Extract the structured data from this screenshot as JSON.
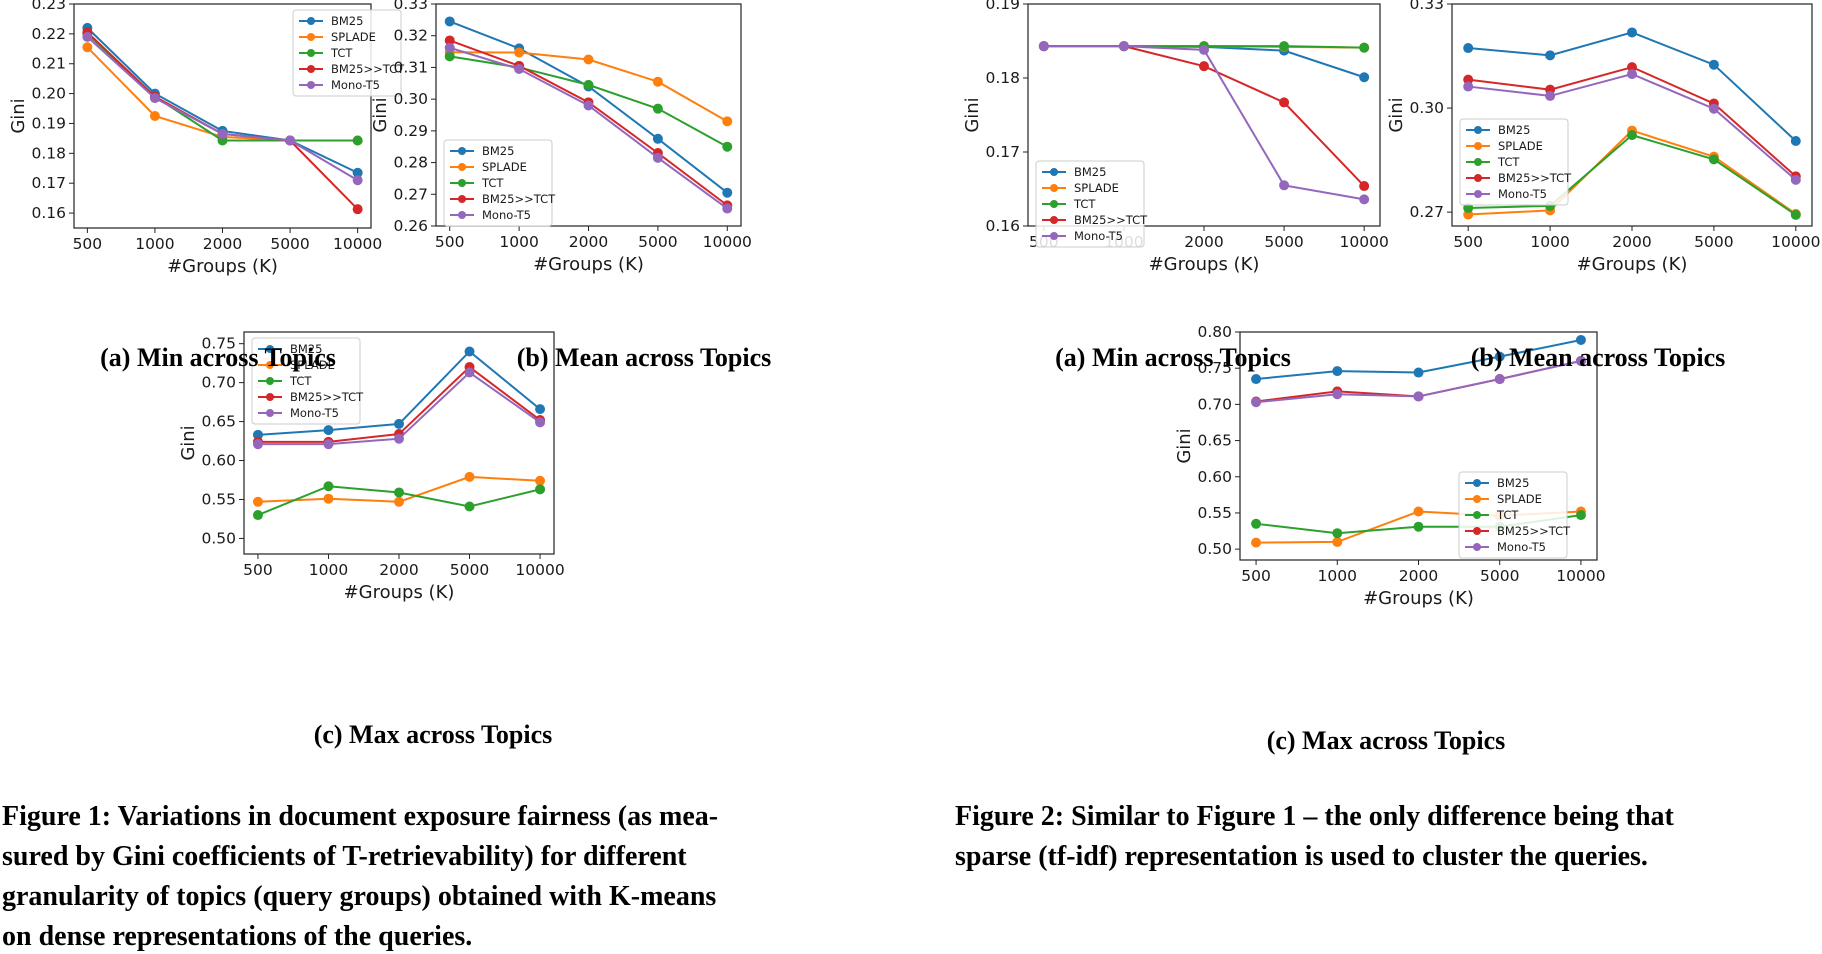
{
  "colors": {
    "BM25": "#1f77b4",
    "SPLADE": "#ff7f0e",
    "TCT": "#2ca02c",
    "BM25>>TCT": "#d62728",
    "Mono-T5": "#9467bd"
  },
  "subcaptions": {
    "f1a": "(a) Min across Topics",
    "f1b": "(b) Mean across Topics",
    "f1c": "(c) Max across Topics",
    "f2a": "(a) Min across Topics",
    "f2b": "(b) Mean across Topics",
    "f2c": "(c) Max across Topics"
  },
  "figure_captions": {
    "fig1": [
      "Figure 1: Variations in document exposure fairness (as mea-",
      "sured by Gini coefficients of T-retrievability) for different",
      "granularity of topics (query groups) obtained with K-means",
      "on dense representations of the queries."
    ],
    "fig2": [
      "Figure 2: Similar to Figure 1 – the only difference being that",
      "sparse (tf-idf) representation is used to cluster the queries."
    ]
  },
  "chart_data": [
    {
      "id": "f1a",
      "type": "line",
      "title": "",
      "xlabel": "#Groups (K)",
      "ylabel": "Gini",
      "categories": [
        "500",
        "1000",
        "2000",
        "5000",
        "10000"
      ],
      "ylim": [
        0.155,
        0.23
      ],
      "yticks": [
        0.16,
        0.17,
        0.18,
        0.19,
        0.2,
        0.21,
        0.22,
        0.23
      ],
      "ydecimals": 2,
      "legend": "top-right",
      "series": [
        {
          "name": "BM25",
          "values": [
            0.222,
            0.2,
            0.1875,
            0.1843,
            0.1735
          ]
        },
        {
          "name": "SPLADE",
          "values": [
            0.2155,
            0.1925,
            0.1855,
            0.1843,
            0.1843
          ]
        },
        {
          "name": "TCT",
          "values": [
            0.22,
            0.199,
            0.1843,
            0.1843,
            0.1843
          ]
        },
        {
          "name": "BM25>>TCT",
          "values": [
            0.2205,
            0.199,
            0.1865,
            0.1843,
            0.1613
          ]
        },
        {
          "name": "Mono-T5",
          "values": [
            0.219,
            0.1985,
            0.1865,
            0.1843,
            0.171
          ]
        }
      ]
    },
    {
      "id": "f1b",
      "type": "line",
      "title": "",
      "xlabel": "#Groups (K)",
      "ylabel": "Gini",
      "categories": [
        "500",
        "1000",
        "2000",
        "5000",
        "10000"
      ],
      "ylim": [
        0.26,
        0.33
      ],
      "yticks": [
        0.26,
        0.27,
        0.28,
        0.29,
        0.3,
        0.31,
        0.32,
        0.33
      ],
      "ydecimals": 2,
      "legend": "bottom-left",
      "series": [
        {
          "name": "BM25",
          "values": [
            0.3245,
            0.316,
            0.304,
            0.2875,
            0.2705
          ]
        },
        {
          "name": "SPLADE",
          "values": [
            0.3148,
            0.3147,
            0.3125,
            0.3055,
            0.293
          ]
        },
        {
          "name": "TCT",
          "values": [
            0.3135,
            0.31,
            0.3045,
            0.297,
            0.285
          ]
        },
        {
          "name": "BM25>>TCT",
          "values": [
            0.3185,
            0.3105,
            0.299,
            0.283,
            0.2665
          ]
        },
        {
          "name": "Mono-T5",
          "values": [
            0.3162,
            0.3095,
            0.298,
            0.2815,
            0.2655
          ]
        }
      ]
    },
    {
      "id": "f1c",
      "type": "line",
      "title": "",
      "xlabel": "#Groups (K)",
      "ylabel": "Gini",
      "categories": [
        "500",
        "1000",
        "2000",
        "5000",
        "10000"
      ],
      "ylim": [
        0.48,
        0.765
      ],
      "yticks": [
        0.5,
        0.55,
        0.6,
        0.65,
        0.7,
        0.75
      ],
      "ydecimals": 2,
      "legend": "top-left",
      "series": [
        {
          "name": "BM25",
          "values": [
            0.633,
            0.639,
            0.647,
            0.74,
            0.666
          ]
        },
        {
          "name": "SPLADE",
          "values": [
            0.547,
            0.551,
            0.547,
            0.579,
            0.574
          ]
        },
        {
          "name": "TCT",
          "values": [
            0.53,
            0.567,
            0.559,
            0.541,
            0.563
          ]
        },
        {
          "name": "BM25>>TCT",
          "values": [
            0.624,
            0.624,
            0.634,
            0.72,
            0.652
          ]
        },
        {
          "name": "Mono-T5",
          "values": [
            0.621,
            0.621,
            0.628,
            0.713,
            0.649
          ]
        }
      ]
    },
    {
      "id": "f2a",
      "type": "line",
      "title": "",
      "xlabel": "#Groups (K)",
      "ylabel": "Gini",
      "categories": [
        "500",
        "1000",
        "2000",
        "5000",
        "10000"
      ],
      "ylim": [
        0.16,
        0.19
      ],
      "yticks": [
        0.16,
        0.17,
        0.18,
        0.19
      ],
      "ydecimals": 2,
      "legend": "bottom-left",
      "series": [
        {
          "name": "BM25",
          "values": [
            0.1843,
            0.1843,
            0.1842,
            0.1837,
            0.1801
          ]
        },
        {
          "name": "SPLADE",
          "values": [
            0.1843,
            0.1843,
            0.1843,
            0.1842,
            0.1841
          ]
        },
        {
          "name": "TCT",
          "values": [
            0.1843,
            0.1843,
            0.1843,
            0.1843,
            0.1841
          ]
        },
        {
          "name": "BM25>>TCT",
          "values": [
            0.1843,
            0.1843,
            0.1816,
            0.1767,
            0.1654
          ]
        },
        {
          "name": "Mono-T5",
          "values": [
            0.1843,
            0.1843,
            0.1838,
            0.1655,
            0.1636
          ]
        }
      ]
    },
    {
      "id": "f2b",
      "type": "line",
      "title": "",
      "xlabel": "#Groups (K)",
      "ylabel": "Gini",
      "categories": [
        "500",
        "1000",
        "2000",
        "5000",
        "10000"
      ],
      "ylim": [
        0.266,
        0.33
      ],
      "yticks": [
        0.27,
        0.3,
        0.33
      ],
      "ydecimals": 2,
      "legend": "left",
      "series": [
        {
          "name": "BM25",
          "values": [
            0.3173,
            0.3152,
            0.3218,
            0.3125,
            0.2905
          ]
        },
        {
          "name": "SPLADE",
          "values": [
            0.2693,
            0.2705,
            0.2935,
            0.286,
            0.2695
          ]
        },
        {
          "name": "TCT",
          "values": [
            0.2712,
            0.2718,
            0.2922,
            0.2852,
            0.2692
          ]
        },
        {
          "name": "BM25>>TCT",
          "values": [
            0.3082,
            0.3053,
            0.3118,
            0.3013,
            0.2803
          ]
        },
        {
          "name": "Mono-T5",
          "values": [
            0.3062,
            0.3035,
            0.3098,
            0.2998,
            0.2793
          ]
        }
      ]
    },
    {
      "id": "f2c",
      "type": "line",
      "title": "",
      "xlabel": "#Groups (K)",
      "ylabel": "Gini",
      "categories": [
        "500",
        "1000",
        "2000",
        "5000",
        "10000"
      ],
      "ylim": [
        0.485,
        0.8
      ],
      "yticks": [
        0.5,
        0.55,
        0.6,
        0.65,
        0.7,
        0.75,
        0.8
      ],
      "ydecimals": 2,
      "legend": "right",
      "series": [
        {
          "name": "BM25",
          "values": [
            0.735,
            0.746,
            0.744,
            0.766,
            0.789
          ]
        },
        {
          "name": "SPLADE",
          "values": [
            0.509,
            0.51,
            0.552,
            0.546,
            0.552
          ]
        },
        {
          "name": "TCT",
          "values": [
            0.535,
            0.522,
            0.531,
            0.531,
            0.547
          ]
        },
        {
          "name": "BM25>>TCT",
          "values": [
            0.704,
            0.718,
            0.711,
            0.735,
            0.76
          ]
        },
        {
          "name": "Mono-T5",
          "values": [
            0.703,
            0.714,
            0.711,
            0.735,
            0.76
          ]
        }
      ]
    }
  ]
}
